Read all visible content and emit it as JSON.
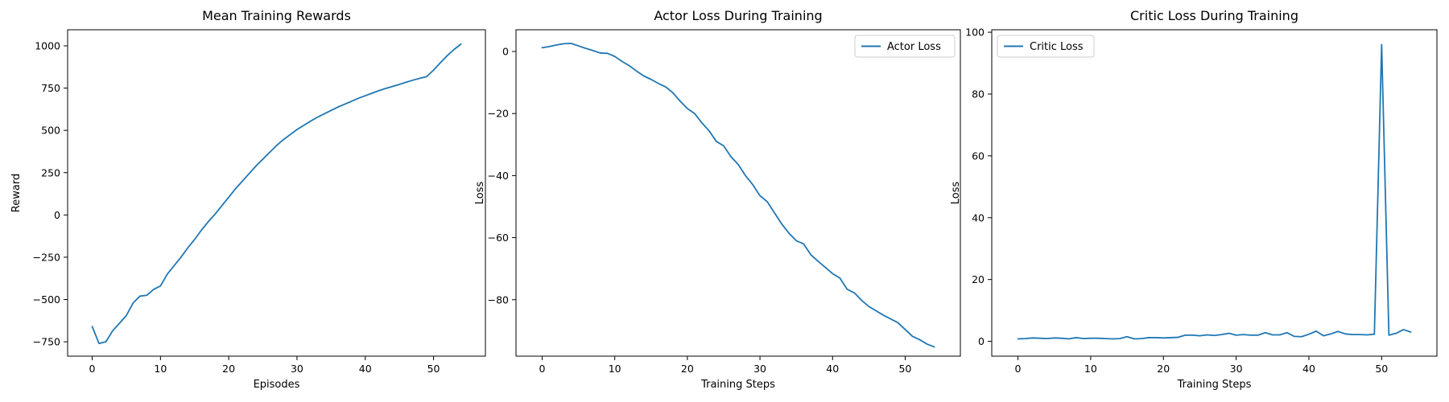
{
  "colors": {
    "series": "#1f77b4",
    "axes": "#000000",
    "background": "#ffffff",
    "legend_border": "#cccccc"
  },
  "chart_data": [
    {
      "type": "line",
      "title": "Mean Training Rewards",
      "xlabel": "Episodes",
      "ylabel": "Reward",
      "xlim": [
        -3.6,
        57.6
      ],
      "ylim": [
        -835,
        1095
      ],
      "xticks": [
        0,
        10,
        20,
        30,
        40,
        50
      ],
      "xtick_labels": [
        "0",
        "10",
        "20",
        "30",
        "40",
        "50"
      ],
      "yticks": [
        -750,
        -500,
        -250,
        0,
        250,
        500,
        750,
        1000
      ],
      "ytick_labels": [
        "−750",
        "−500",
        "−250",
        "0",
        "250",
        "500",
        "750",
        "1000"
      ],
      "legend": null,
      "grid": false,
      "series": [
        {
          "name": "",
          "x": [
            0,
            1,
            2,
            3,
            4,
            5,
            6,
            7,
            8,
            9,
            10,
            11,
            12,
            13,
            14,
            15,
            16,
            17,
            18,
            19,
            20,
            21,
            22,
            23,
            24,
            25,
            26,
            27,
            28,
            29,
            30,
            31,
            32,
            33,
            34,
            35,
            36,
            37,
            38,
            39,
            40,
            41,
            42,
            43,
            44,
            45,
            46,
            47,
            48,
            49,
            50,
            51,
            52,
            53,
            54
          ],
          "y": [
            -660,
            -760,
            -750,
            -685,
            -640,
            -595,
            -520,
            -480,
            -475,
            -440,
            -420,
            -350,
            -300,
            -250,
            -195,
            -145,
            -90,
            -40,
            5,
            55,
            105,
            155,
            200,
            245,
            290,
            330,
            370,
            410,
            445,
            475,
            505,
            530,
            555,
            578,
            598,
            618,
            638,
            655,
            672,
            690,
            705,
            720,
            735,
            748,
            760,
            772,
            785,
            797,
            808,
            818,
            856,
            900,
            942,
            978,
            1010
          ]
        }
      ]
    },
    {
      "type": "line",
      "title": "Actor Loss During Training",
      "xlabel": "Training Steps",
      "ylabel": "Loss",
      "xlim": [
        -3.6,
        57.6
      ],
      "ylim": [
        -98.2,
        7
      ],
      "xticks": [
        0,
        10,
        20,
        30,
        40,
        50
      ],
      "xtick_labels": [
        "0",
        "10",
        "20",
        "30",
        "40",
        "50"
      ],
      "yticks": [
        -80,
        -60,
        -40,
        -20,
        0
      ],
      "ytick_labels": [
        "−80",
        "−60",
        "−40",
        "−20",
        "0"
      ],
      "legend": "top-right",
      "grid": false,
      "series": [
        {
          "name": "Actor Loss",
          "x": [
            0,
            1,
            2,
            3,
            4,
            5,
            6,
            7,
            8,
            9,
            10,
            11,
            12,
            13,
            14,
            15,
            16,
            17,
            18,
            19,
            20,
            21,
            22,
            23,
            24,
            25,
            26,
            27,
            28,
            29,
            30,
            31,
            32,
            33,
            34,
            35,
            36,
            37,
            38,
            39,
            40,
            41,
            42,
            43,
            44,
            45,
            46,
            47,
            48,
            49,
            50,
            51,
            52,
            53,
            54
          ],
          "y": [
            1.2,
            1.6,
            2.1,
            2.5,
            2.6,
            1.8,
            1.0,
            0.3,
            -0.5,
            -0.6,
            -1.6,
            -3.2,
            -4.6,
            -6.3,
            -7.9,
            -9,
            -10.3,
            -11.4,
            -13.3,
            -16,
            -18.4,
            -20,
            -23,
            -25.6,
            -29,
            -30.4,
            -33.9,
            -36.4,
            -40,
            -42.9,
            -46.5,
            -48.4,
            -52,
            -55.6,
            -58.6,
            -61,
            -62,
            -65.5,
            -67.6,
            -69.6,
            -71.6,
            -73,
            -76.6,
            -77.8,
            -80.2,
            -82.2,
            -83.6,
            -85,
            -86.2,
            -87.4,
            -89.6,
            -91.8,
            -92.9,
            -94.3,
            -95.2
          ]
        }
      ]
    },
    {
      "type": "line",
      "title": "Critic Loss During Training",
      "xlabel": "Training Steps",
      "ylabel": "Loss",
      "xlim": [
        -3.6,
        57.6
      ],
      "ylim": [
        -4.8,
        100.8
      ],
      "xticks": [
        0,
        10,
        20,
        30,
        40,
        50
      ],
      "xtick_labels": [
        "0",
        "10",
        "20",
        "30",
        "40",
        "50"
      ],
      "yticks": [
        0,
        20,
        40,
        60,
        80,
        100
      ],
      "ytick_labels": [
        "0",
        "20",
        "40",
        "60",
        "80",
        "100"
      ],
      "legend": "top-left",
      "grid": false,
      "series": [
        {
          "name": "Critic Loss",
          "x": [
            0,
            1,
            2,
            3,
            4,
            5,
            6,
            7,
            8,
            9,
            10,
            11,
            12,
            13,
            14,
            15,
            16,
            17,
            18,
            19,
            20,
            21,
            22,
            23,
            24,
            25,
            26,
            27,
            28,
            29,
            30,
            31,
            32,
            33,
            34,
            35,
            36,
            37,
            38,
            39,
            40,
            41,
            42,
            43,
            44,
            45,
            46,
            47,
            48,
            49,
            50,
            51,
            52,
            53,
            54
          ],
          "y": [
            0.8,
            0.9,
            1.1,
            1.0,
            0.9,
            1.1,
            1.0,
            0.8,
            1.2,
            0.9,
            1.0,
            1.0,
            0.9,
            0.8,
            0.9,
            1.5,
            0.8,
            0.9,
            1.2,
            1.2,
            1.1,
            1.2,
            1.3,
            2.0,
            2.0,
            1.8,
            2.1,
            1.9,
            2.2,
            2.6,
            2.0,
            2.2,
            2.0,
            2.0,
            2.8,
            2.1,
            2.1,
            2.8,
            1.6,
            1.5,
            2.3,
            3.3,
            1.8,
            2.4,
            3.2,
            2.4,
            2.2,
            2.2,
            2.1,
            2.3,
            96.0,
            2.0,
            2.6,
            3.8,
            3.0
          ]
        }
      ]
    }
  ]
}
